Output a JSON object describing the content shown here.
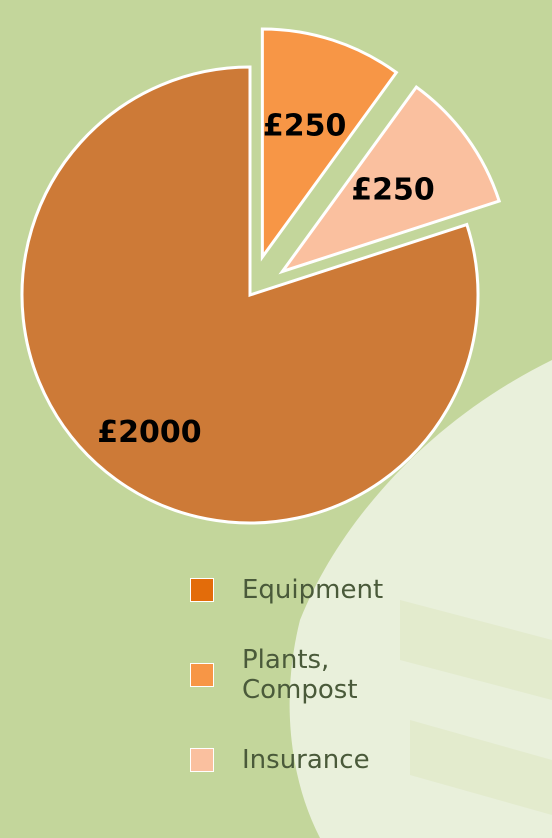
{
  "chart_data": {
    "type": "pie",
    "categories": [
      "Equipment",
      "Plants, Compost",
      "Insurance"
    ],
    "values": [
      2000,
      250,
      250
    ],
    "value_labels": [
      "£2000",
      "£250",
      "£250"
    ],
    "colors": [
      "#cd7a37",
      "#f79646",
      "#fac09f"
    ],
    "legend_colors": [
      "#e36c0a",
      "#f79646",
      "#fac09f"
    ],
    "legend": "bottom"
  }
}
